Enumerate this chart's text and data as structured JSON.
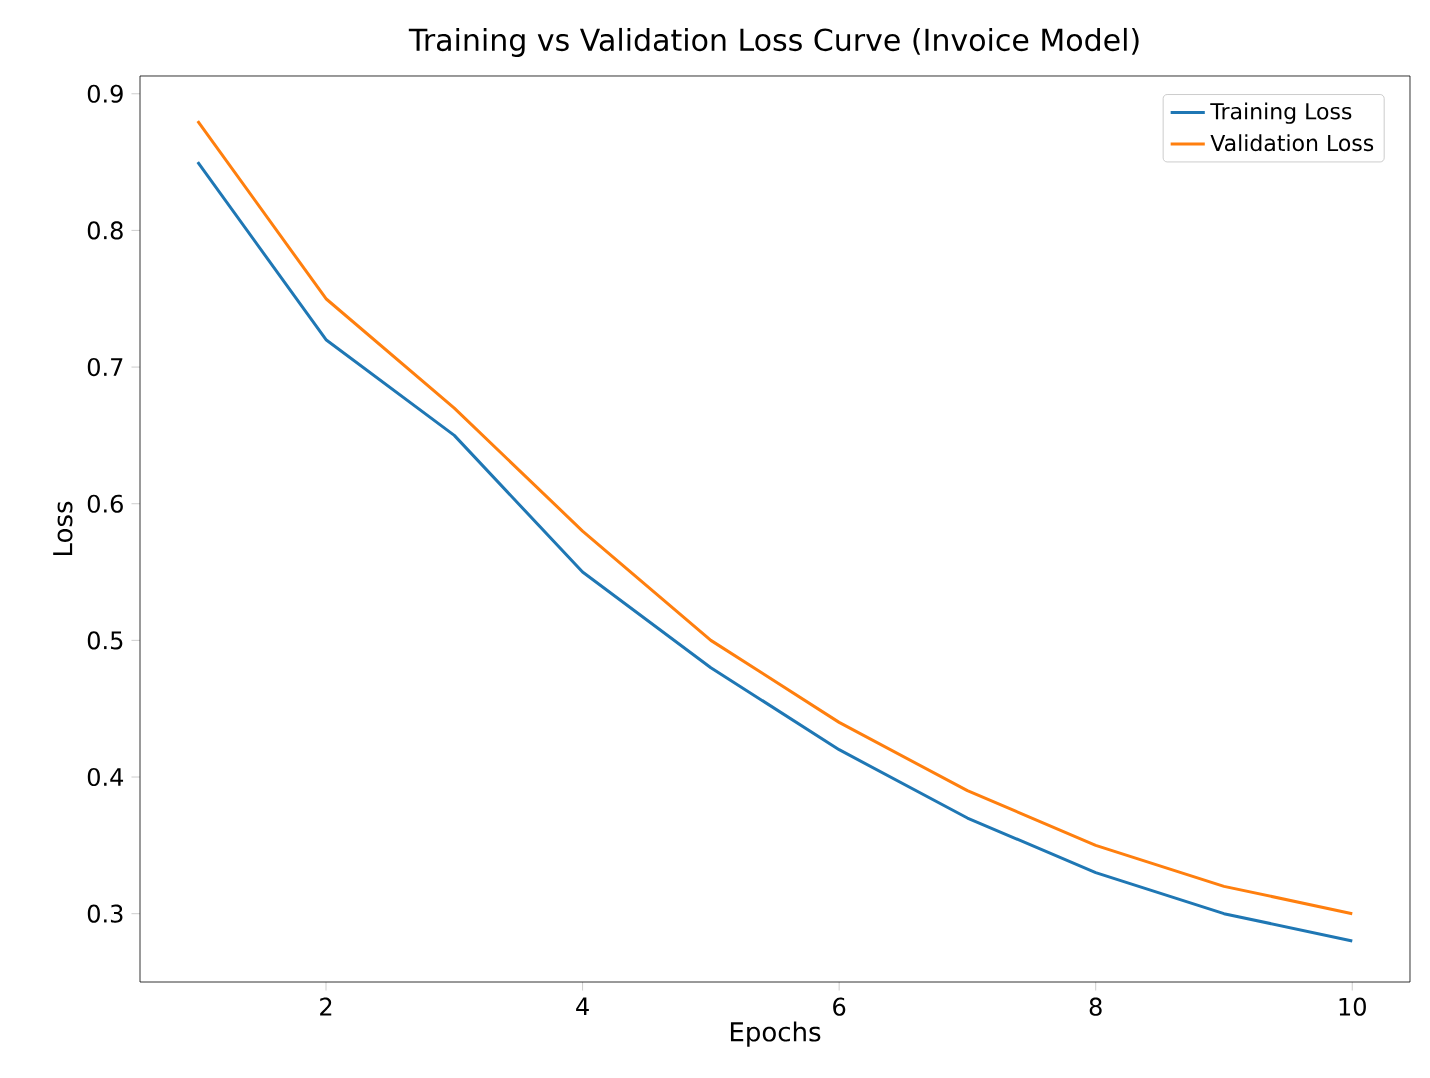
{
  "chart_data": {
    "type": "line",
    "title": "Training vs Validation Loss Curve (Invoice Model)",
    "xlabel": "Epochs",
    "ylabel": "Loss",
    "x": [
      1,
      2,
      3,
      4,
      5,
      6,
      7,
      8,
      9,
      10
    ],
    "series": [
      {
        "name": "Training Loss",
        "color": "#1f77b4",
        "values": [
          0.85,
          0.72,
          0.65,
          0.55,
          0.48,
          0.42,
          0.37,
          0.33,
          0.3,
          0.28
        ]
      },
      {
        "name": "Validation Loss",
        "color": "#ff7f0e",
        "values": [
          0.88,
          0.75,
          0.67,
          0.58,
          0.5,
          0.44,
          0.39,
          0.35,
          0.32,
          0.3
        ]
      }
    ],
    "xlim": [
      0.55,
      10.45
    ],
    "ylim": [
      0.25,
      0.913
    ],
    "xticks": [
      2,
      4,
      6,
      8,
      10
    ],
    "yticks": [
      0.3,
      0.4,
      0.5,
      0.6,
      0.7,
      0.8,
      0.9
    ],
    "legend": "top right",
    "grid": false,
    "marker": "none",
    "line_style": "solid"
  }
}
